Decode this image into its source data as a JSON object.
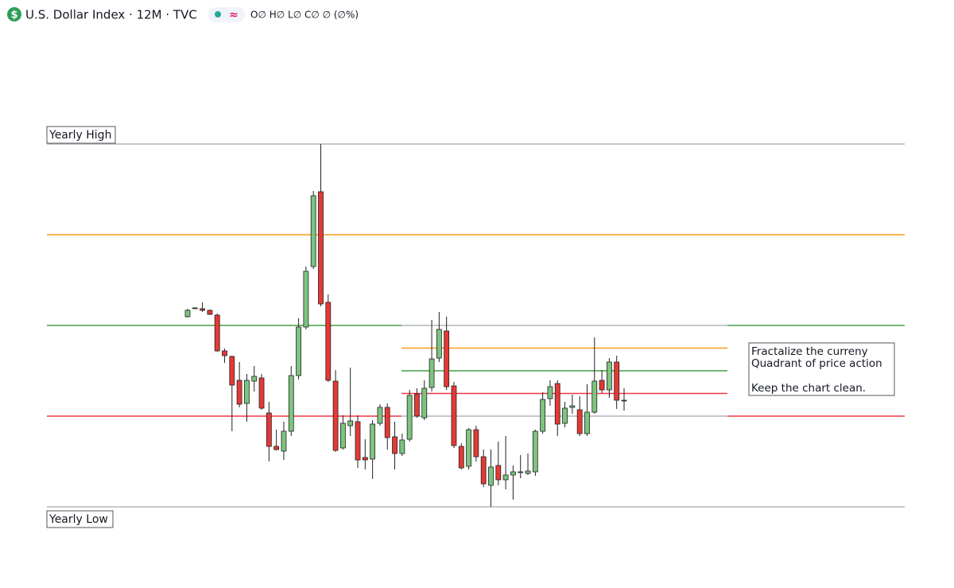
{
  "chart_data": {
    "type": "candlestick",
    "title": "U.S. Dollar Index · 12M · TVC",
    "ohlc_readout": "O∅ H∅ L∅ C∅ ∅ (∅%)",
    "annotations": {
      "high_label": "Yearly High",
      "low_label": "Yearly Low",
      "note": [
        "Fractalize the curreny",
        "Quadrant of price action",
        "Keep the chart clean."
      ]
    },
    "ylim": [
      0,
      456
    ],
    "up_color": "#7dc47f",
    "down_color": "#e53935",
    "levels": [
      {
        "value": 456,
        "color": "#b2b5be"
      },
      {
        "value": 342,
        "color": "#f59c1a"
      },
      {
        "value": 228,
        "color": "#43a047"
      },
      {
        "value": 114,
        "color": "#f23645"
      },
      {
        "value": 0,
        "color": "#b2b5be"
      }
    ],
    "quadrant_levels": [
      {
        "value": 228,
        "color": "#b2b5be"
      },
      {
        "value": 199.5,
        "color": "#f59c1a"
      },
      {
        "value": 171,
        "color": "#43a047"
      },
      {
        "value": 142.5,
        "color": "#f23645"
      },
      {
        "value": 114,
        "color": "#b2b5be"
      }
    ],
    "open": [
      239,
      250,
      249,
      247,
      241,
      196,
      189,
      159,
      130,
      158,
      162,
      118,
      76,
      70,
      95,
      165,
      226,
      302,
      396,
      257,
      158,
      74,
      102,
      107,
      62,
      60,
      105,
      125,
      88,
      67,
      85,
      142,
      112,
      150,
      187,
      221,
      152,
      76,
      51,
      97,
      63,
      27,
      52,
      34,
      40,
      43,
      42,
      44,
      95,
      136,
      155,
      105,
      125,
      122,
      92,
      119,
      159,
      147,
      182,
      134
    ],
    "high": [
      249,
      251,
      257,
      248,
      243,
      199,
      190,
      182,
      167,
      177,
      167,
      132,
      97,
      107,
      177,
      237,
      302,
      397,
      456,
      267,
      172,
      115,
      175,
      115,
      85,
      109,
      129,
      130,
      107,
      92,
      147,
      149,
      159,
      235,
      245,
      239,
      157,
      80,
      99,
      102,
      72,
      72,
      82,
      89,
      52,
      65,
      67,
      97,
      144,
      159,
      159,
      132,
      141,
      139,
      154,
      213,
      172,
      187,
      190,
      149
    ],
    "low": [
      238,
      249,
      245,
      241,
      195,
      181,
      95,
      125,
      107,
      145,
      122,
      57,
      71,
      59,
      89,
      160,
      223,
      299,
      252,
      157,
      69,
      72,
      89,
      49,
      47,
      35,
      102,
      72,
      47,
      64,
      82,
      112,
      109,
      145,
      182,
      147,
      74,
      47,
      47,
      57,
      25,
      0,
      27,
      22,
      9,
      36,
      40,
      39,
      92,
      127,
      89,
      100,
      117,
      89,
      89,
      117,
      143,
      137,
      123,
      121
    ],
    "close": [
      247,
      250,
      247,
      242,
      196,
      190,
      153,
      129,
      159,
      164,
      124,
      76,
      72,
      95,
      165,
      226,
      296,
      391,
      255,
      159,
      71,
      105,
      108,
      59,
      59,
      104,
      125,
      87,
      67,
      84,
      140,
      114,
      149,
      186,
      223,
      151,
      77,
      49,
      97,
      63,
      29,
      50,
      34,
      40,
      44,
      44,
      45,
      95,
      135,
      151,
      104,
      124,
      127,
      92,
      119,
      158,
      147,
      182,
      134,
      133
    ]
  }
}
